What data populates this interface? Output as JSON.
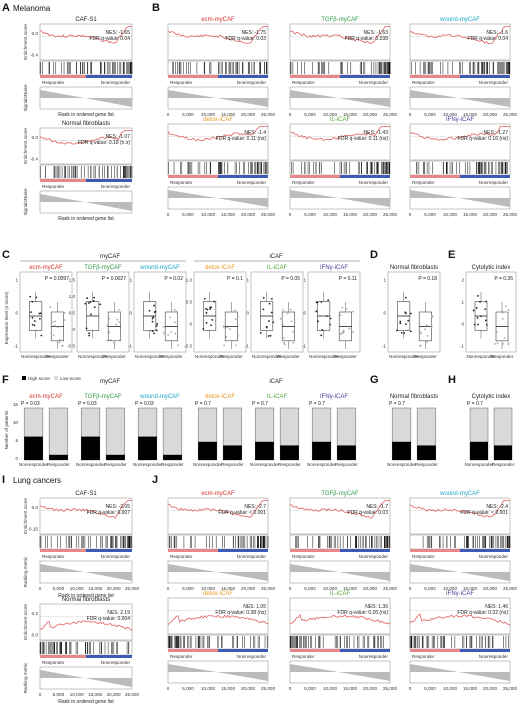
{
  "colors": {
    "curve": "#e06060",
    "ecm": "#d6302f",
    "tgfb": "#2e9a49",
    "wound": "#1ea6c9",
    "detox": "#e59a24",
    "il": "#53a83a",
    "ifn": "#4e3a9a",
    "responder": "#e8878a",
    "nonresponder": "#3c5bb6",
    "high": "#000000",
    "low": "#d9d9d9"
  },
  "labels": {
    "A": "A",
    "B": "B",
    "C": "C",
    "D": "D",
    "E": "E",
    "F": "F",
    "G": "G",
    "H": "H",
    "I": "I",
    "J": "J"
  },
  "sections": {
    "melanoma": "Melanoma",
    "lung": "Lung cancers",
    "mycaf": "myCAF",
    "icaf": "iCAF"
  },
  "common": {
    "enrichment_score": "Enrichment score",
    "signal2noise": "Signal2Noise",
    "ranking_metric": "Ranking metric",
    "rank_axis": "Rank in ordered gene list",
    "responder": "Responder",
    "nonresponder": "Nonresponder",
    "expression_axis": "Expression level (z-score)",
    "number_patients": "Number of patients",
    "high_score": "High score",
    "low_score": "Low score"
  },
  "panelA": [
    {
      "title": "CAF-S1",
      "nes": "NES: -1.65",
      "fdr": "FDR q-value: 0.04",
      "shape": "neg",
      "ytick_top": "0.0",
      "ytick_bottom": "-0.4"
    },
    {
      "title": "Normal fibroblasts",
      "nes": "NES: -1.07",
      "fdr": "FDR q-value: 0.18 (n.s)",
      "shape": "neg2",
      "ytick_top": "0.0",
      "ytick_bottom": "-0.4"
    }
  ],
  "panelB": [
    {
      "title": "ecm-myCAF",
      "color": "ecm",
      "nes": "NES: -1.75",
      "fdr": "FDR q-value: 0.03",
      "shape": "neg"
    },
    {
      "title": "TGFβ-myCAF",
      "color": "tgfb",
      "nes": "NES: -1.63",
      "fdr": "FDR q-value: 0.038",
      "shape": "neg"
    },
    {
      "title": "wound-myCAF",
      "color": "wound",
      "nes": "NES: -1.6",
      "fdr": "FDR q-value: 0.04",
      "shape": "neg"
    },
    {
      "title": "detox-iCAF",
      "color": "detox",
      "nes": "NES: -1.4",
      "fdr": "FDR q-value: 0.11 (ns)",
      "shape": "neg2"
    },
    {
      "title": "IL-iCAF",
      "color": "il",
      "nes": "NES: -1.43",
      "fdr": "FDR q-value: 0.11 (ns)",
      "shape": "neg2"
    },
    {
      "title": "IFNγ-iCAF",
      "color": "ifn",
      "nes": "NES: -1.27",
      "fdr": "FDR q-value: 0.16 (ns)",
      "shape": "neg2"
    }
  ],
  "rank_ticks": [
    "0",
    "5,000",
    "10,000",
    "15,000",
    "20,000",
    "25,000"
  ],
  "panelC": [
    {
      "title": "ecm-myCAF",
      "color": "ecm",
      "p": "P = 0.0097",
      "yticks": [
        "1",
        "0",
        "-1"
      ]
    },
    {
      "title": "TGFβ-myCAF",
      "color": "tgfb",
      "p": "P = 0.0027",
      "yticks": [
        "1.5",
        "1.0",
        "0.5",
        "0",
        "-0.5"
      ]
    },
    {
      "title": "wound-myCAF",
      "color": "wound",
      "p": "P = 0.02",
      "yticks": [
        "1",
        "0",
        "-1"
      ]
    },
    {
      "title": "detox-iCAF",
      "color": "detox",
      "p": "P = 0.1",
      "yticks": [
        "1.0",
        "0.5",
        "0",
        "-0.5"
      ]
    },
    {
      "title": "IL-iCAF",
      "color": "il",
      "p": "P = 0.05",
      "yticks": [
        "1",
        "0",
        "-1"
      ]
    },
    {
      "title": "IFNγ-iCAF",
      "color": "ifn",
      "p": "P = 0.11",
      "yticks": [
        "1",
        "0",
        "-1"
      ]
    }
  ],
  "panelD": {
    "title": "Normal fibroblasts",
    "p": "P = 0.18",
    "yticks": [
      "1",
      "0",
      "-1"
    ]
  },
  "panelE": {
    "title": "Cytolytic index",
    "p": "P = 0.35",
    "yticks": [
      "2",
      "1",
      "0",
      "-1"
    ]
  },
  "panelF": [
    {
      "title": "ecm-myCAF",
      "color": "ecm",
      "p": "P = 0.03",
      "nonresp_high": 0.45,
      "resp_high": 0.1
    },
    {
      "title": "TGFβ-myCAF",
      "color": "tgfb",
      "p": "P = 0.03",
      "nonresp_high": 0.45,
      "resp_high": 0.1
    },
    {
      "title": "wound-myCAF",
      "color": "wound",
      "p": "P = 0.03",
      "nonresp_high": 0.45,
      "resp_high": 0.1
    },
    {
      "title": "detox-iCAF",
      "color": "detox",
      "p": "P = 0.7",
      "nonresp_high": 0.35,
      "resp_high": 0.28
    },
    {
      "title": "IL-iCAF",
      "color": "il",
      "p": "P = 0.7",
      "nonresp_high": 0.35,
      "resp_high": 0.28
    },
    {
      "title": "IFNγ-iCAF",
      "color": "ifn",
      "p": "P = 0.7",
      "nonresp_high": 0.35,
      "resp_high": 0.28
    }
  ],
  "panelG": {
    "title": "Normal fibroblasts",
    "p": "P = 0.7",
    "nonresp_high": 0.35,
    "resp_high": 0.28
  },
  "panelH": {
    "title": "Cytolytic index",
    "p": "P = 0.7",
    "nonresp_high": 0.35,
    "resp_high": 0.28
  },
  "bar_yticks": [
    "0",
    "5",
    "10",
    "15"
  ],
  "panelI": [
    {
      "title": "CAF-S1",
      "nes": "NES: -2.05",
      "fdr": "FDR q-value: 0.007",
      "shape": "neg",
      "ytick_top": "0.0",
      "ytick_bottom": "-0.15"
    },
    {
      "title": "Normal fibroblasts",
      "nes": "NES: 2.19",
      "fdr": "FDR q-value: 0.004",
      "shape": "pos",
      "ytick_top": "0.2",
      "ytick_bottom": "0.0"
    }
  ],
  "panelJ": [
    {
      "title": "ecm-myCAF",
      "color": "ecm",
      "nes": "NES: -2.7",
      "fdr": "FDR q-value: < 0.001",
      "shape": "neg"
    },
    {
      "title": "TGFβ-myCAF",
      "color": "tgfb",
      "nes": "NES: -1.7",
      "fdr": "FDR q-value: 0.03",
      "shape": "neg"
    },
    {
      "title": "wound-myCAF",
      "color": "wound",
      "nes": "NES: -2.4",
      "fdr": "FDR q-value: < 0.001",
      "shape": "neg"
    },
    {
      "title": "detox-iCAF",
      "color": "detox",
      "nes": "NES: 1.05",
      "fdr": "FDR q-value: 0.38 (ns)",
      "shape": "pos"
    },
    {
      "title": "IL-iCAF",
      "color": "il",
      "nes": "NES: 1.36",
      "fdr": "FDR q-value: 0.26 (ns)",
      "shape": "pos"
    },
    {
      "title": "IFNγ-iCAF",
      "color": "ifn",
      "nes": "NES: 1.46",
      "fdr": "FDR q-value: 0.32 (ns)",
      "shape": "pos"
    }
  ],
  "lung_ranking_ticks": [
    "4",
    "0",
    "-4"
  ],
  "lung_rank_ticks": [
    "0",
    "5,000",
    "10,000",
    "15,000",
    "20,000",
    "25,000"
  ]
}
